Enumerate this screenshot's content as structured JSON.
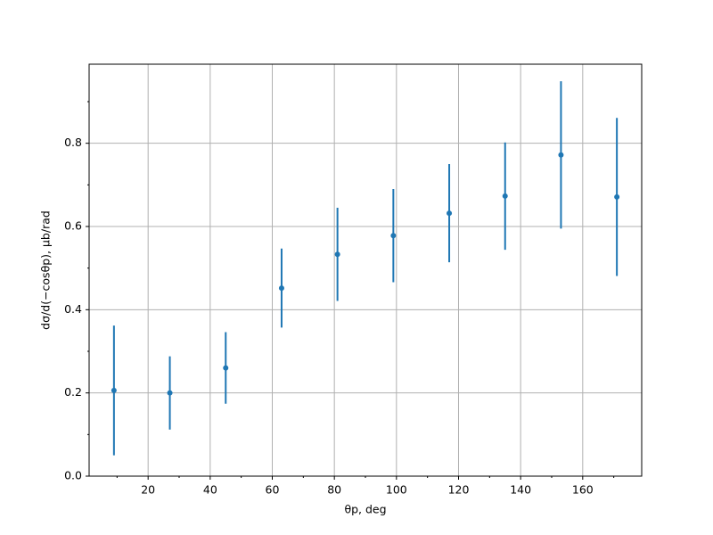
{
  "chart_data": {
    "type": "errorbar",
    "xlabel": "θp, deg",
    "ylabel": "dσ/d(−cosθp), μb/rad",
    "x": [
      9,
      27,
      45,
      63,
      81,
      99,
      117,
      135,
      153,
      171
    ],
    "series": [
      {
        "color": "#1f77b4",
        "values": [
          0.206,
          0.2,
          0.26,
          0.452,
          0.533,
          0.578,
          0.632,
          0.673,
          0.772,
          0.671
        ],
        "errors": [
          0.156,
          0.088,
          0.086,
          0.095,
          0.112,
          0.112,
          0.118,
          0.129,
          0.177,
          0.19
        ]
      }
    ],
    "xlim": [
      1,
      179
    ],
    "ylim": [
      0,
      0.99
    ],
    "xticks": [
      20,
      40,
      60,
      80,
      100,
      120,
      140,
      160
    ],
    "x_minor_ticks": [
      10,
      30,
      50,
      70,
      90,
      110,
      130,
      150,
      170
    ],
    "yticks": [
      {
        "value": 0,
        "label": "0.0"
      },
      0.2,
      0.4,
      0.6,
      0.8
    ],
    "y_minor_ticks": [
      0.1,
      0.3,
      0.5,
      0.7,
      0.9
    ],
    "grid": true
  }
}
